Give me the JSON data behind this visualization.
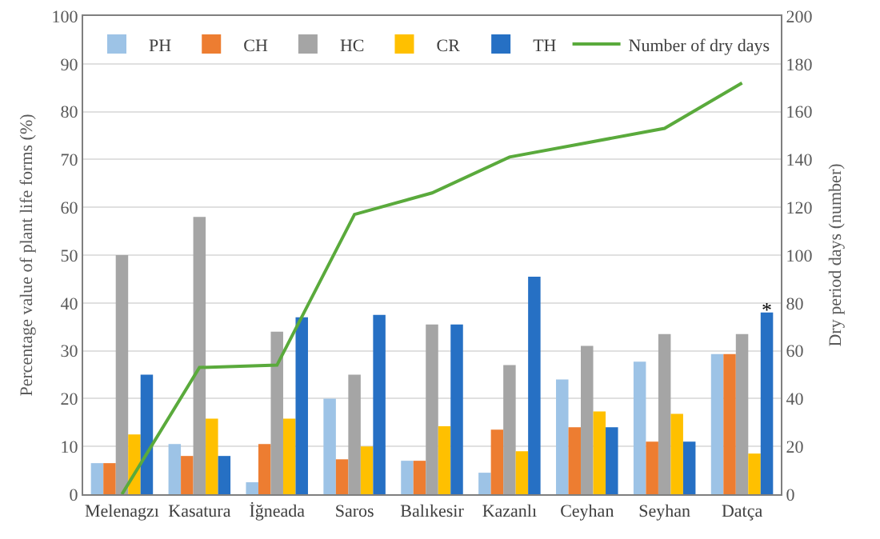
{
  "chart_data": {
    "type": "bar",
    "categories": [
      "Melenagzı",
      "Kasatura",
      "İğneada",
      "Saros",
      "Balıkesir",
      "Kazanlı",
      "Ceyhan",
      "Seyhan",
      "Datça"
    ],
    "series": [
      {
        "name": "PH",
        "color": "#9dc3e6",
        "values": [
          6.5,
          10.5,
          2.5,
          20,
          7,
          4.5,
          24,
          27.7,
          29.3
        ]
      },
      {
        "name": "CH",
        "color": "#ed7d31",
        "values": [
          6.5,
          8,
          10.5,
          7.3,
          7,
          13.5,
          14,
          11,
          29.3
        ]
      },
      {
        "name": "HC",
        "color": "#a5a5a5",
        "values": [
          50,
          58,
          34,
          25,
          35.5,
          27,
          31,
          33.5,
          33.5
        ]
      },
      {
        "name": "CR",
        "color": "#ffc000",
        "values": [
          12.5,
          15.8,
          15.8,
          10,
          14.2,
          9,
          17.3,
          16.8,
          8.5
        ]
      },
      {
        "name": "TH",
        "color": "#2670c4",
        "values": [
          25,
          8,
          37,
          37.5,
          35.5,
          45.5,
          14,
          11,
          38
        ]
      },
      {
        "name": "Number of dry days",
        "type": "line",
        "axis": "y2",
        "color": "#5aaa3c",
        "values": [
          0,
          53,
          54,
          117,
          126,
          141,
          147,
          153,
          172
        ]
      }
    ],
    "ylabel": "Percentage value of plant life forms (%)",
    "y2label": "Dry period days (number)",
    "ylim": [
      0,
      100
    ],
    "yticks": [
      0,
      10,
      20,
      30,
      40,
      50,
      60,
      70,
      80,
      90,
      100
    ],
    "y2lim": [
      0,
      200
    ],
    "y2ticks": [
      0,
      20,
      40,
      60,
      80,
      100,
      120,
      140,
      160,
      180,
      200
    ],
    "grid": "y",
    "legend": "top",
    "marker": "none",
    "annotations": [
      "*"
    ]
  }
}
